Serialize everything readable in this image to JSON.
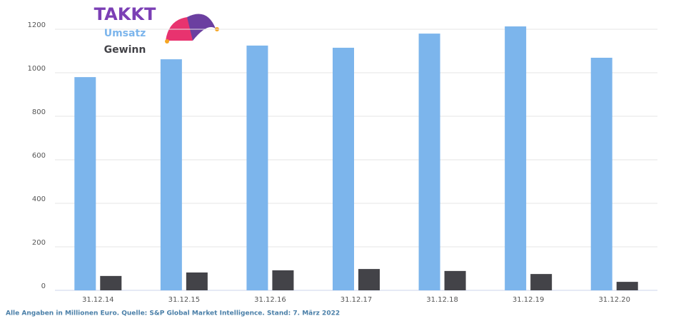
{
  "chart_data": {
    "type": "bar",
    "title": "TAKKT",
    "categories": [
      "31.12.14",
      "31.12.15",
      "31.12.16",
      "31.12.17",
      "31.12.18",
      "31.12.19",
      "31.12.20"
    ],
    "series": [
      {
        "name": "Umsatz",
        "color": "#7cb5ec",
        "values": [
          980,
          1062,
          1125,
          1115,
          1180,
          1213,
          1069
        ]
      },
      {
        "name": "Gewinn",
        "color": "#434348",
        "values": [
          66,
          82,
          92,
          98,
          89,
          75,
          39
        ]
      }
    ],
    "ylim": [
      0,
      1200
    ],
    "yticks": [
      0,
      200,
      400,
      600,
      800,
      1000,
      1200
    ],
    "grid": true,
    "source": "Alle Angaben in Millionen Euro. Quelle:  S&P Global Market Intelligence. Stand: 7. März 2022"
  }
}
